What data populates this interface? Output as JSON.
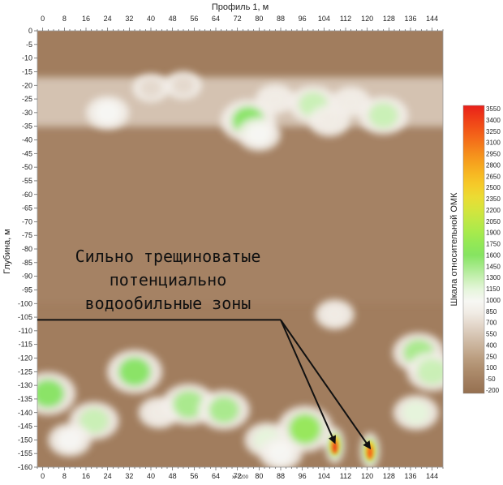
{
  "chart_data": {
    "type": "heatmap",
    "title": "Профиль 1, м",
    "xlabel": "Профиль 1, м",
    "ylabel": "Глубина, м",
    "x_ticks": [
      0,
      8,
      16,
      24,
      32,
      40,
      48,
      56,
      64,
      72,
      80,
      88,
      96,
      104,
      112,
      120,
      128,
      136,
      144
    ],
    "x_minor_step": 2,
    "xlim": [
      -2,
      148
    ],
    "y_ticks": [
      0,
      -5,
      -10,
      -15,
      -20,
      -25,
      -30,
      -35,
      -40,
      -45,
      -50,
      -55,
      -60,
      -65,
      -70,
      -75,
      -80,
      -85,
      -90,
      -95,
      -100,
      -105,
      -110,
      -115,
      -120,
      -125,
      -130,
      -135,
      -140,
      -145,
      -150,
      -155,
      -160
    ],
    "ylim": [
      0,
      -160
    ],
    "colorbar": {
      "label": "Шкала относительной ОМК",
      "ticks": [
        3550,
        3400,
        3250,
        3100,
        2950,
        2800,
        2650,
        2500,
        2350,
        2200,
        2050,
        1900,
        1750,
        1600,
        1450,
        1300,
        1150,
        1000,
        850,
        700,
        550,
        400,
        250,
        100,
        -50,
        -200
      ],
      "colors": [
        "#e8201a",
        "#ee3a18",
        "#f25418",
        "#f46e1a",
        "#f5891c",
        "#f6a21e",
        "#f7b923",
        "#f5cc2a",
        "#eadc34",
        "#d6e43c",
        "#bfe845",
        "#a8ea4c",
        "#93e856",
        "#86e461",
        "#a6ea8a",
        "#c8f0b4",
        "#e6f6dc",
        "#f7f7f3",
        "#f1ece5",
        "#e4d8cc",
        "#d6c4b2",
        "#c8b198",
        "#ba9d7f",
        "#ad8c6c",
        "#a17d5e",
        "#957050"
      ]
    },
    "background_value": -50,
    "anomalies": [
      {
        "x": 108,
        "depth": -152,
        "value": 3550
      },
      {
        "x": 121,
        "depth": -154,
        "value": 3300
      },
      {
        "x": 34,
        "depth": -125,
        "value": 1650
      },
      {
        "x": 2,
        "depth": -133,
        "value": 1600
      },
      {
        "x": 43,
        "depth": -140,
        "value": 900
      },
      {
        "x": 54,
        "depth": -137,
        "value": 1500
      },
      {
        "x": 67,
        "depth": -139,
        "value": 1400
      },
      {
        "x": 97,
        "depth": -146,
        "value": 1800
      },
      {
        "x": 139,
        "depth": -118,
        "value": 1400
      },
      {
        "x": 144,
        "depth": -125,
        "value": 1350
      },
      {
        "x": 138,
        "depth": -140,
        "value": 1100
      },
      {
        "x": 19,
        "depth": -143,
        "value": 1300
      },
      {
        "x": 10,
        "depth": -150,
        "value": 1000
      },
      {
        "x": 83,
        "depth": -150,
        "value": 1100
      },
      {
        "x": 88,
        "depth": -155,
        "value": 1000
      },
      {
        "x": 76,
        "depth": -33,
        "value": 1600
      },
      {
        "x": 80,
        "depth": -38,
        "value": 1000
      },
      {
        "x": 24,
        "depth": -30,
        "value": 1000
      },
      {
        "x": 100,
        "depth": -27,
        "value": 1250
      },
      {
        "x": 106,
        "depth": -33,
        "value": 900
      },
      {
        "x": 126,
        "depth": -31,
        "value": 1300
      },
      {
        "x": 114,
        "depth": -26,
        "value": 800
      },
      {
        "x": 40,
        "depth": -21,
        "value": 700
      },
      {
        "x": 52,
        "depth": -20,
        "value": 700
      },
      {
        "x": 86,
        "depth": -25,
        "value": 800
      },
      {
        "x": 108,
        "depth": -104,
        "value": 800
      }
    ],
    "bands": [
      {
        "depth_top": -17,
        "depth_bottom": -35,
        "value": 700
      },
      {
        "depth_top": -35,
        "depth_bottom": -100,
        "value": 100
      }
    ],
    "annotation": {
      "lines": [
        "Сильно трещиноватые",
        "потенциально",
        "водообильные зоны"
      ],
      "leader_depth": -106,
      "leader_x_start": -2,
      "leader_x_end": 88,
      "arrow_targets": [
        {
          "x": 108,
          "depth": -151
        },
        {
          "x": 121,
          "depth": -153
        }
      ]
    },
    "scale_note": "x=2200",
    "grid": false
  }
}
